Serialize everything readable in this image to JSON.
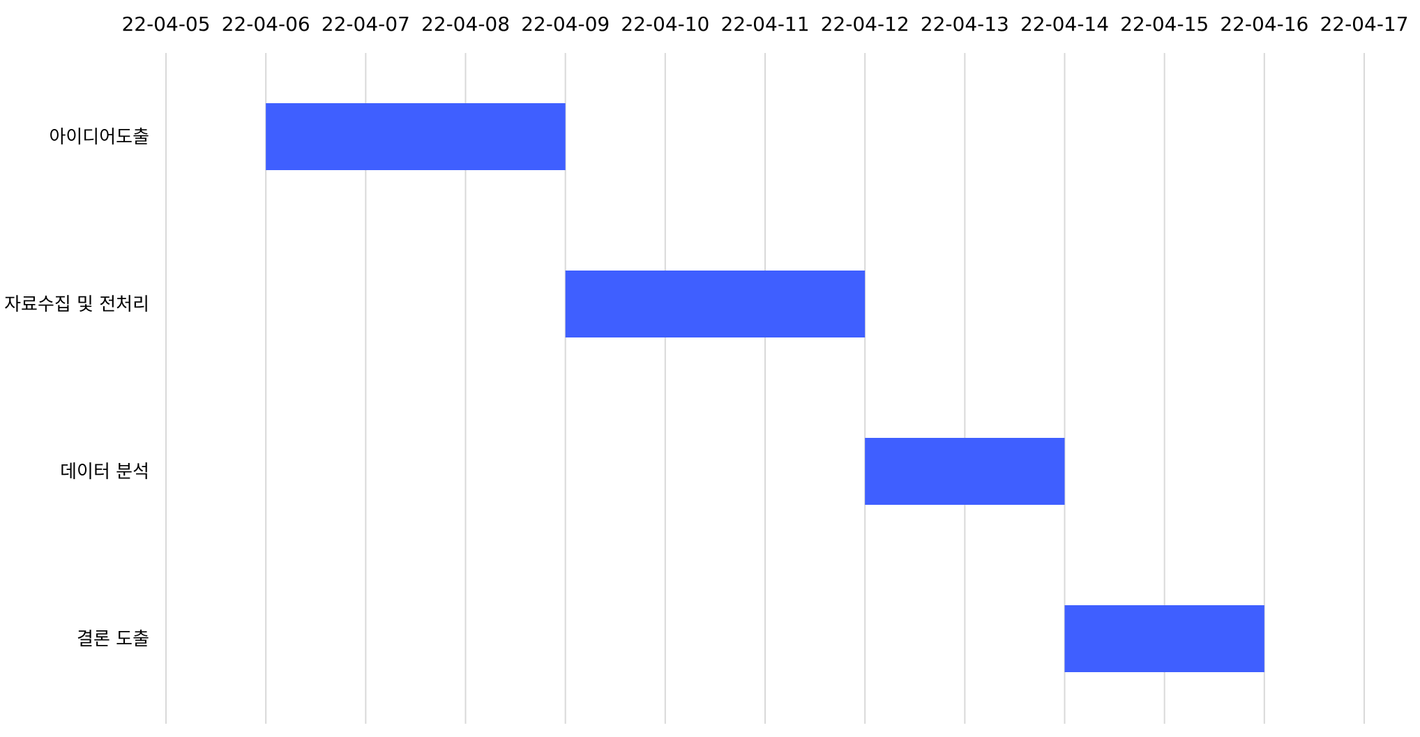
{
  "chart_data": {
    "type": "bar",
    "orientation": "horizontal",
    "style": "gantt",
    "title": "",
    "xlabel": "",
    "ylabel": "",
    "x_axis_position": "top",
    "x_ticks": [
      "22-04-05",
      "22-04-06",
      "22-04-07",
      "22-04-08",
      "22-04-09",
      "22-04-10",
      "22-04-11",
      "22-04-12",
      "22-04-13",
      "22-04-14",
      "22-04-15",
      "22-04-16",
      "22-04-17"
    ],
    "xlim": [
      "22-04-05",
      "22-04-17"
    ],
    "grid": "vertical",
    "legend": "none",
    "bar_color": "#3f5fff",
    "grid_color": "#d9d9d9",
    "tasks": [
      {
        "name": "아이디어도출",
        "start": "22-04-06",
        "end": "22-04-09"
      },
      {
        "name": "자료수집 및 전처리",
        "start": "22-04-09",
        "end": "22-04-12"
      },
      {
        "name": "데이터 분석",
        "start": "22-04-12",
        "end": "22-04-14"
      },
      {
        "name": "결론 도출",
        "start": "22-04-14",
        "end": "22-04-16"
      }
    ]
  }
}
